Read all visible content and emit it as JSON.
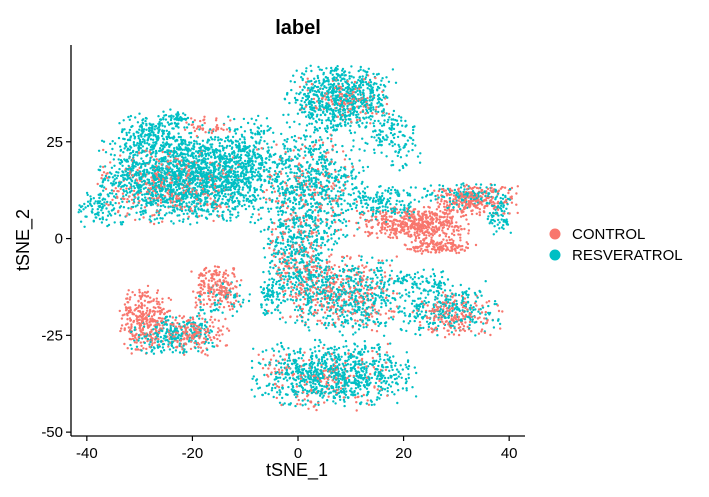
{
  "chart_data": {
    "type": "scatter",
    "title": "label",
    "xlabel": "tSNE_1",
    "ylabel": "tSNE_2",
    "xlim": [
      -43,
      43
    ],
    "ylim": [
      -51,
      50
    ],
    "x_ticks": [
      -40,
      -20,
      0,
      20,
      40
    ],
    "y_ticks": [
      -50,
      -25,
      0,
      25
    ],
    "x_tick_labels": [
      "-40",
      "-20",
      "0",
      "20",
      "40"
    ],
    "y_tick_labels": [
      "-50",
      "-25",
      "0",
      "25"
    ],
    "grid": false,
    "legend_position": "right",
    "series": [
      {
        "name": "CONTROL",
        "color": "#F8766D"
      },
      {
        "name": "RESVERATROL",
        "color": "#00BFC4"
      }
    ],
    "clusters": [
      {
        "series": 1,
        "cx": -22,
        "cy": 16,
        "sx": 9,
        "sy": 7,
        "n": 1700
      },
      {
        "series": 0,
        "cx": -24,
        "cy": 14,
        "sx": 8,
        "sy": 6,
        "n": 330
      },
      {
        "series": 1,
        "cx": -28,
        "cy": 27,
        "sx": 4,
        "sy": 3,
        "n": 170
      },
      {
        "series": 1,
        "cx": -38,
        "cy": 8,
        "sx": 2.5,
        "sy": 3,
        "n": 80
      },
      {
        "series": 1,
        "cx": -10,
        "cy": 18,
        "sx": 5,
        "sy": 8,
        "n": 420
      },
      {
        "series": 1,
        "cx": 8,
        "cy": 36,
        "sx": 6,
        "sy": 5,
        "n": 720
      },
      {
        "series": 0,
        "cx": 9,
        "cy": 36,
        "sx": 5,
        "sy": 4,
        "n": 120
      },
      {
        "series": 1,
        "cx": 3,
        "cy": 13,
        "sx": 6,
        "sy": 9,
        "n": 650
      },
      {
        "series": 0,
        "cx": 2,
        "cy": 14,
        "sx": 6,
        "sy": 8,
        "n": 160
      },
      {
        "series": 1,
        "cx": 0,
        "cy": -6,
        "sx": 4,
        "sy": 9,
        "n": 420
      },
      {
        "series": 0,
        "cx": 1,
        "cy": -6,
        "sx": 4,
        "sy": 9,
        "n": 180
      },
      {
        "series": 0,
        "cx": 22,
        "cy": 4,
        "sx": 6,
        "sy": 2.5,
        "n": 480
      },
      {
        "series": 0,
        "cx": 33,
        "cy": 10,
        "sx": 5,
        "sy": 2.5,
        "n": 280
      },
      {
        "series": 1,
        "cx": 32,
        "cy": 11,
        "sx": 5,
        "sy": 2,
        "n": 130
      },
      {
        "series": 1,
        "cx": 38,
        "cy": 6,
        "sx": 1.5,
        "sy": 3,
        "n": 70
      },
      {
        "series": 0,
        "cx": 27,
        "cy": -2,
        "sx": 4,
        "sy": 1.3,
        "n": 150
      },
      {
        "series": 1,
        "cx": 17,
        "cy": 9,
        "sx": 4,
        "sy": 3,
        "n": 140
      },
      {
        "series": 1,
        "cx": 18,
        "cy": 26,
        "sx": 3,
        "sy": 5,
        "n": 120
      },
      {
        "series": 1,
        "cx": 10,
        "cy": -15,
        "sx": 6,
        "sy": 6,
        "n": 450
      },
      {
        "series": 0,
        "cx": 9,
        "cy": -14,
        "sx": 6,
        "sy": 6,
        "n": 280
      },
      {
        "series": 1,
        "cx": 28,
        "cy": -18,
        "sx": 6,
        "sy": 4,
        "n": 280
      },
      {
        "series": 0,
        "cx": 30,
        "cy": -20,
        "sx": 5,
        "sy": 3.5,
        "n": 180
      },
      {
        "series": 1,
        "cx": 23,
        "cy": -11,
        "sx": 4,
        "sy": 2,
        "n": 80
      },
      {
        "series": 0,
        "cx": -29,
        "cy": -21,
        "sx": 3,
        "sy": 5,
        "n": 300
      },
      {
        "series": 1,
        "cx": -24,
        "cy": -25,
        "sx": 5,
        "sy": 3,
        "n": 250
      },
      {
        "series": 0,
        "cx": -20,
        "cy": -25,
        "sx": 4,
        "sy": 3,
        "n": 180
      },
      {
        "series": 0,
        "cx": -15,
        "cy": -13,
        "sx": 3,
        "sy": 3.5,
        "n": 200
      },
      {
        "series": 1,
        "cx": -14,
        "cy": -16,
        "sx": 3,
        "sy": 3,
        "n": 60
      },
      {
        "series": 1,
        "cx": 7,
        "cy": -35,
        "sx": 9,
        "sy": 5,
        "n": 850
      },
      {
        "series": 0,
        "cx": 5,
        "cy": -36,
        "sx": 8,
        "sy": 5,
        "n": 180
      },
      {
        "series": 1,
        "cx": -5,
        "cy": -15,
        "sx": 1.5,
        "sy": 3,
        "n": 60
      },
      {
        "series": 1,
        "cx": -23,
        "cy": 31,
        "sx": 2,
        "sy": 1.5,
        "n": 60
      },
      {
        "series": 0,
        "cx": -17,
        "cy": 29,
        "sx": 3,
        "sy": 1.5,
        "n": 40
      }
    ]
  }
}
